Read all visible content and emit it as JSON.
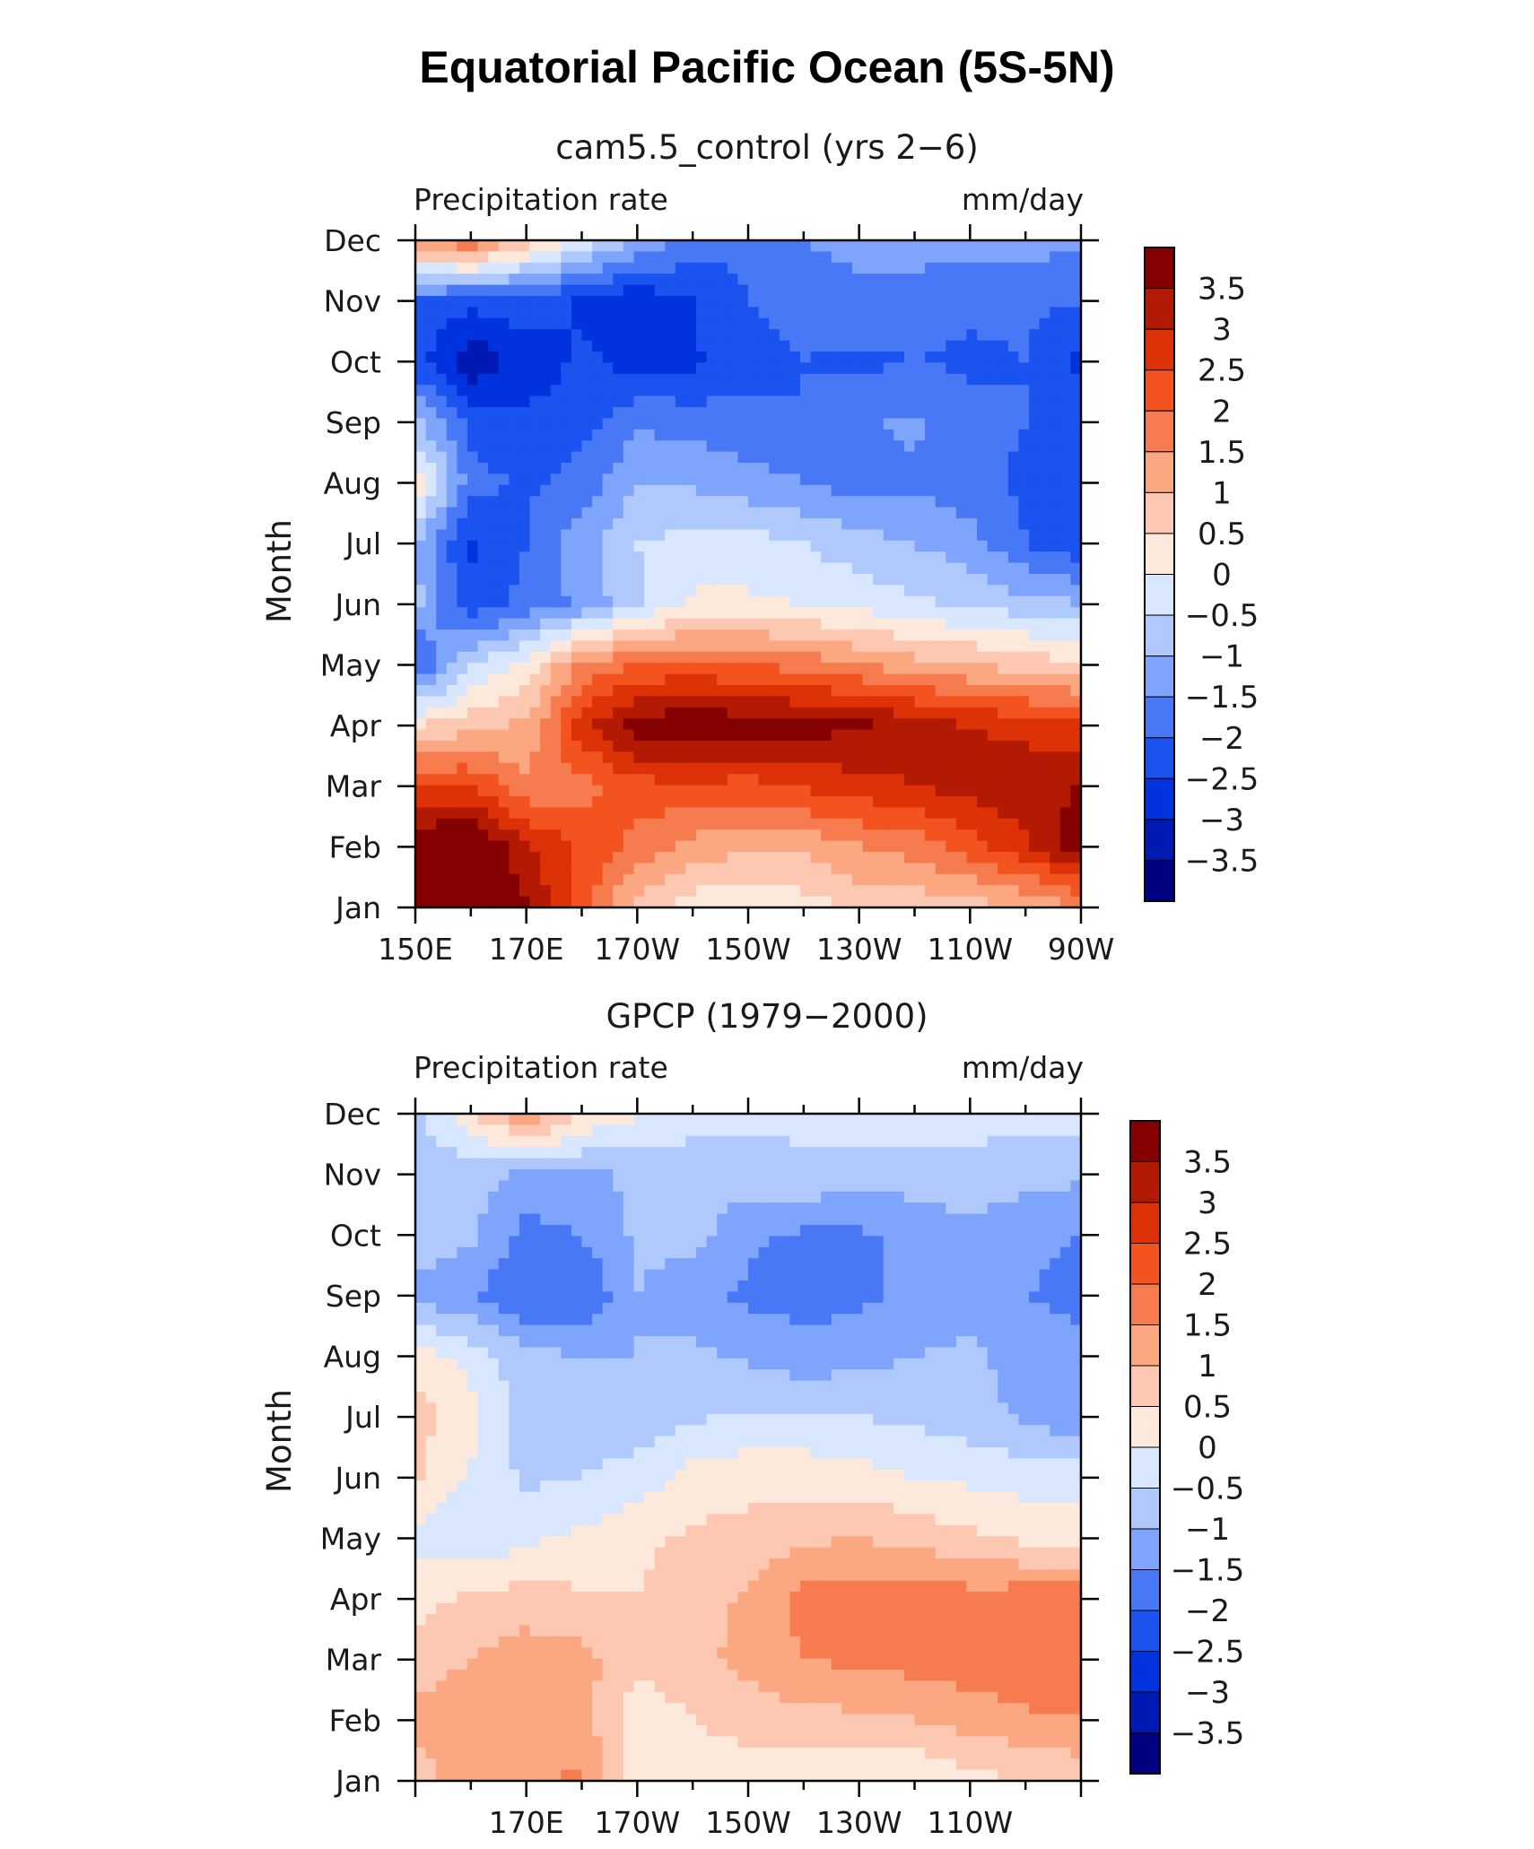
{
  "figure_title": "Equatorial Pacific Ocean (5S-5N)",
  "colors": [
    "#000080",
    "#0019b3",
    "#0033dd",
    "#1a53f0",
    "#4878f5",
    "#7ea5fb",
    "#b0c9fc",
    "#d8e7fd",
    "#fde9dc",
    "#fcc8b2",
    "#fba882",
    "#f67b4f",
    "#f3531f",
    "#dd3208",
    "#b21a03",
    "#850000"
  ],
  "chart_data": [
    {
      "type": "heatmap",
      "title": "cam5.5_control (yrs 2−6)",
      "left_label": "Precipitation rate",
      "right_label": "mm/day",
      "ylabel": "Month",
      "xlabel": "",
      "x": [
        150,
        160,
        170,
        180,
        190,
        200,
        210,
        220,
        230,
        240,
        250,
        260,
        270
      ],
      "xlim": [
        150,
        270
      ],
      "xticks": [
        150,
        170,
        190,
        210,
        230,
        250,
        270
      ],
      "xtick_labels": [
        "150E",
        "170E",
        "170W",
        "150W",
        "130W",
        "110W",
        "90W"
      ],
      "y": [
        "Jan",
        "Feb",
        "Mar",
        "Apr",
        "May",
        "Jun",
        "Jul",
        "Aug",
        "Sep",
        "Oct",
        "Nov",
        "Dec"
      ],
      "values": [
        [
          4.1,
          4.3,
          3.6,
          2.2,
          0.8,
          0.2,
          0.1,
          0.3,
          0.6,
          0.7,
          0.8,
          1.0,
          1.5
        ],
        [
          4.0,
          4.2,
          3.1,
          2.4,
          1.8,
          1.3,
          1.1,
          1.1,
          1.5,
          1.7,
          2.3,
          2.9,
          3.8
        ],
        [
          2.6,
          2.5,
          1.6,
          1.8,
          2.3,
          2.4,
          2.3,
          2.6,
          2.8,
          3.0,
          3.2,
          3.4,
          3.5
        ],
        [
          0.5,
          0.8,
          1.1,
          2.8,
          3.8,
          4.0,
          3.8,
          3.7,
          3.6,
          3.3,
          3.0,
          2.8,
          2.6
        ],
        [
          -2.2,
          -0.5,
          0.2,
          1.6,
          2.0,
          2.1,
          2.0,
          1.8,
          1.5,
          1.2,
          1.0,
          0.8,
          0.6
        ],
        [
          -0.8,
          -2.4,
          -1.8,
          -1.4,
          -0.6,
          0.1,
          0.1,
          0.0,
          -0.2,
          -0.4,
          -0.6,
          -0.8,
          -1.0
        ],
        [
          -1.0,
          -2.6,
          -2.0,
          -1.2,
          -0.5,
          -0.3,
          -0.3,
          -0.5,
          -0.8,
          -1.0,
          -1.3,
          -2.0,
          -2.4
        ],
        [
          0.5,
          -1.8,
          -2.1,
          -1.8,
          -1.0,
          -1.1,
          -1.3,
          -1.5,
          -1.7,
          -1.6,
          -1.8,
          -2.1,
          -2.4
        ],
        [
          -0.9,
          -2.2,
          -2.4,
          -2.2,
          -1.6,
          -1.7,
          -1.9,
          -2.0,
          -1.6,
          -1.4,
          -1.8,
          -2.0,
          -2.2
        ],
        [
          -2.3,
          -3.4,
          -2.8,
          -2.4,
          -2.7,
          -2.6,
          -2.1,
          -2.0,
          -2.1,
          -2.0,
          -2.1,
          -2.0,
          -2.6
        ],
        [
          -2.1,
          -2.3,
          -2.2,
          -2.6,
          -2.9,
          -2.5,
          -2.0,
          -1.9,
          -1.7,
          -1.8,
          -1.9,
          -1.9,
          -2.0
        ],
        [
          1.6,
          2.0,
          0.8,
          -0.2,
          -1.0,
          -1.7,
          -1.9,
          -1.5,
          -1.3,
          -1.2,
          -1.3,
          -1.3,
          -1.4
        ]
      ],
      "levels": [
        -3.5,
        -3,
        -2.5,
        -2,
        -1.5,
        -1,
        -0.5,
        0,
        0.5,
        1,
        1.5,
        2,
        2.5,
        3,
        3.5
      ],
      "colorbar_labels": [
        "3.5",
        "3",
        "2.5",
        "2",
        "1.5",
        "1",
        "0.5",
        "0",
        "−0.5",
        "−1",
        "−1.5",
        "−2",
        "−2.5",
        "−3",
        "−3.5"
      ]
    },
    {
      "type": "heatmap",
      "title": "GPCP (1979−2000)",
      "left_label": "Precipitation rate",
      "right_label": "mm/day",
      "ylabel": "Month",
      "xlabel": "",
      "x": [
        150,
        160,
        170,
        180,
        190,
        200,
        210,
        220,
        230,
        240,
        250,
        260,
        270
      ],
      "xlim": [
        150,
        270
      ],
      "xticks": [
        170,
        190,
        210,
        230,
        250
      ],
      "xtick_labels": [
        "170E",
        "170W",
        "150W",
        "130W",
        "110W"
      ],
      "y": [
        "Jan",
        "Feb",
        "Mar",
        "Apr",
        "May",
        "Jun",
        "Jul",
        "Aug",
        "Sep",
        "Oct",
        "Nov",
        "Dec"
      ],
      "values": [
        [
          0.8,
          1.3,
          1.4,
          1.6,
          0.3,
          0.3,
          0.2,
          0.1,
          0.1,
          0.0,
          0.3,
          0.5,
          0.6
        ],
        [
          1.1,
          1.3,
          1.2,
          1.2,
          0.2,
          0.5,
          0.7,
          0.8,
          0.9,
          1.0,
          1.2,
          1.4,
          1.5
        ],
        [
          0.8,
          1.0,
          1.3,
          1.2,
          0.6,
          0.8,
          1.2,
          1.5,
          1.6,
          1.7,
          1.8,
          1.9,
          2.0
        ],
        [
          0.3,
          0.6,
          0.7,
          0.6,
          0.5,
          0.7,
          1.1,
          1.7,
          1.8,
          1.9,
          1.7,
          1.8,
          1.9
        ],
        [
          -0.2,
          -0.4,
          -0.1,
          0.1,
          0.4,
          0.6,
          0.7,
          0.9,
          1.0,
          0.8,
          0.6,
          0.4,
          0.2
        ],
        [
          0.6,
          -0.1,
          -0.6,
          -0.5,
          -0.3,
          0.2,
          0.3,
          0.3,
          0.2,
          0.0,
          -0.1,
          -0.2,
          -0.2
        ],
        [
          0.7,
          0.2,
          -0.8,
          -0.7,
          -0.8,
          -0.6,
          -0.4,
          -0.4,
          -0.5,
          -0.6,
          -0.8,
          -1.1,
          -1.4
        ],
        [
          0.3,
          -0.2,
          -0.8,
          -1.0,
          -1.0,
          -0.9,
          -1.1,
          -1.3,
          -1.2,
          -1.0,
          -0.9,
          -1.2,
          -1.4
        ],
        [
          -1.2,
          -1.4,
          -2.0,
          -2.0,
          -1.0,
          -1.3,
          -1.6,
          -1.7,
          -1.6,
          -1.4,
          -1.2,
          -1.5,
          -1.6
        ],
        [
          -0.6,
          -0.9,
          -1.7,
          -1.5,
          -0.9,
          -0.8,
          -1.4,
          -1.6,
          -1.6,
          -1.3,
          -1.1,
          -1.4,
          -1.5
        ],
        [
          -1.0,
          -0.8,
          -1.1,
          -1.1,
          -0.9,
          -0.8,
          -0.7,
          -0.6,
          -0.7,
          -0.8,
          -0.7,
          -0.8,
          -0.9
        ],
        [
          -0.6,
          0.4,
          1.5,
          0.5,
          0.1,
          -0.3,
          -0.4,
          -0.4,
          -0.3,
          -0.2,
          -0.3,
          -0.3,
          -0.3
        ]
      ],
      "levels": [
        -3.5,
        -3,
        -2.5,
        -2,
        -1.5,
        -1,
        -0.5,
        0,
        0.5,
        1,
        1.5,
        2,
        2.5,
        3,
        3.5
      ],
      "colorbar_labels": [
        "3.5",
        "3",
        "2.5",
        "2",
        "1.5",
        "1",
        "0.5",
        "0",
        "−0.5",
        "−1",
        "−1.5",
        "−2",
        "−2.5",
        "−3",
        "−3.5"
      ]
    }
  ]
}
